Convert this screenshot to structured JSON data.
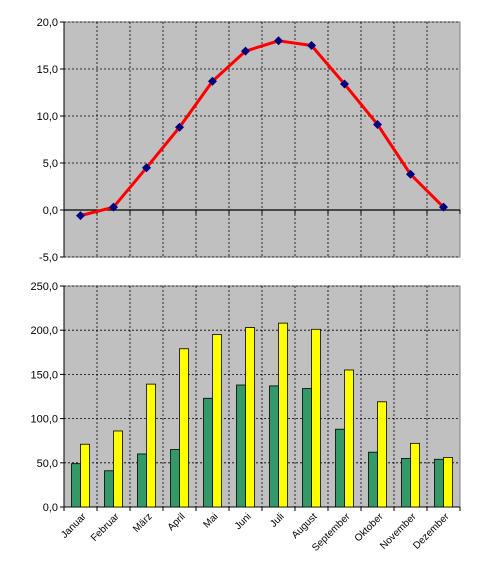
{
  "chart_data": [
    {
      "type": "line",
      "categories": [
        "Januar",
        "Februar",
        "März",
        "April",
        "Mai",
        "Juni",
        "Juli",
        "August",
        "September",
        "Oktober",
        "November",
        "Dezember"
      ],
      "series": [
        {
          "values": [
            -0.6,
            0.3,
            4.5,
            8.8,
            13.7,
            16.9,
            18.0,
            17.5,
            13.4,
            9.1,
            3.8,
            0.3
          ]
        }
      ],
      "ylim": [
        -5,
        20
      ],
      "yticks": [
        "-5,0",
        "0,0",
        "5,0",
        "10,0",
        "15,0",
        "20,0"
      ],
      "grid": true,
      "colors": {
        "line": "#ff0000",
        "marker": "#000080",
        "plot_bg": "#c0c0c0",
        "zero_line": "#000000"
      }
    },
    {
      "type": "bar",
      "categories": [
        "Januar",
        "Februar",
        "März",
        "April",
        "Mai",
        "Juni",
        "Juli",
        "August",
        "September",
        "Oktober",
        "November",
        "Dezember"
      ],
      "series": [
        {
          "values": [
            49,
            41,
            60,
            65,
            123,
            138,
            137,
            134,
            88,
            62,
            55,
            54
          ],
          "color": "#339966"
        },
        {
          "values": [
            71,
            86,
            139,
            179,
            195,
            203,
            208,
            201,
            155,
            119,
            72,
            56
          ],
          "color": "#ffff00"
        }
      ],
      "ylim": [
        0,
        250
      ],
      "yticks": [
        "0,0",
        "50,0",
        "100,0",
        "150,0",
        "200,0",
        "250,0"
      ],
      "grid": true,
      "colors": {
        "plot_bg": "#c0c0c0"
      }
    }
  ]
}
